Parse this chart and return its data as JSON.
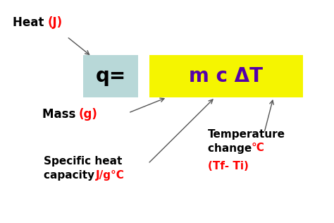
{
  "bg_color": "#ffffff",
  "q_box_color": "#b8d8d8",
  "mct_box_color": "#f5f500",
  "q_text": "q=",
  "q_text_color": "#000000",
  "mct_text": "m c ΔT",
  "mct_text_color": "#5500aa",
  "heat_black": "Heat ",
  "heat_red": "(J)",
  "mass_black": "Mass ",
  "mass_red": "(g)",
  "temp_black1": "Temperature",
  "temp_black2": "change  ",
  "temp_red1": "°C",
  "temp_red2": "(Tf- Ti)",
  "shc_black1": "Specific heat",
  "shc_black2": "capacity ",
  "shc_red": "J/g°C",
  "line_color": "#555555",
  "figsize": [
    4.74,
    3.16
  ],
  "dpi": 100
}
